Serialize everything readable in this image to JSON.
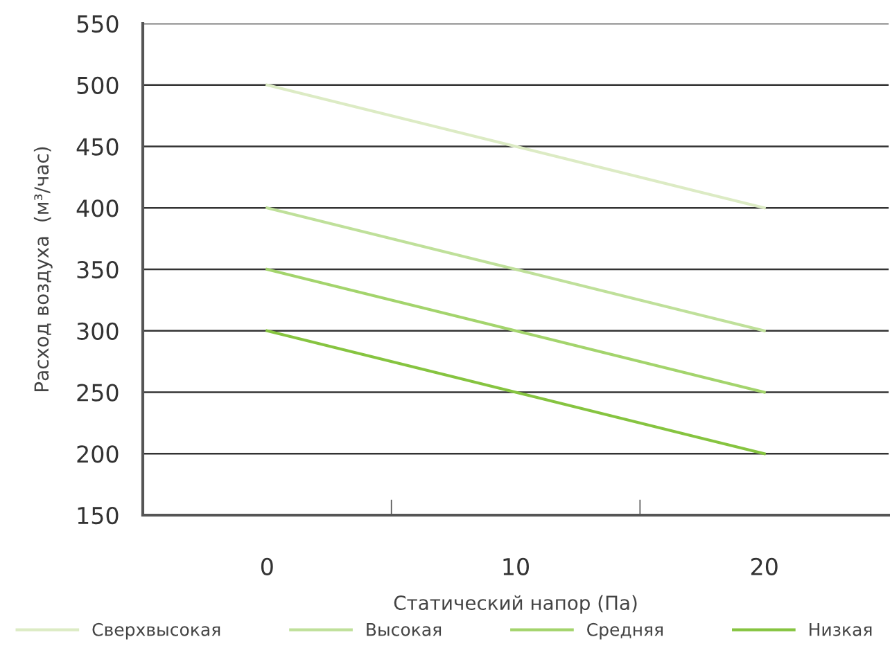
{
  "chart_data": {
    "type": "line",
    "xlabel": "Статический напор (Па)",
    "ylabel": "Расход воздуха  (м³/час)",
    "categories": [
      "0",
      "10",
      "20"
    ],
    "series": [
      {
        "name": "Сверхвысокая",
        "color": "#dcebc4",
        "values": [
          500,
          450,
          400
        ]
      },
      {
        "name": "Высокая",
        "color": "#bfe09a",
        "values": [
          400,
          350,
          300
        ]
      },
      {
        "name": "Средняя",
        "color": "#a3d46c",
        "values": [
          350,
          300,
          250
        ]
      },
      {
        "name": "Низкая",
        "color": "#86c440",
        "values": [
          300,
          250,
          200
        ]
      }
    ],
    "ylim": [
      150,
      550
    ],
    "yticks": [
      150,
      200,
      250,
      300,
      350,
      400,
      450,
      500,
      550
    ],
    "grid": "y",
    "legend": "bottom",
    "marker": "none",
    "line_style": "solid"
  }
}
